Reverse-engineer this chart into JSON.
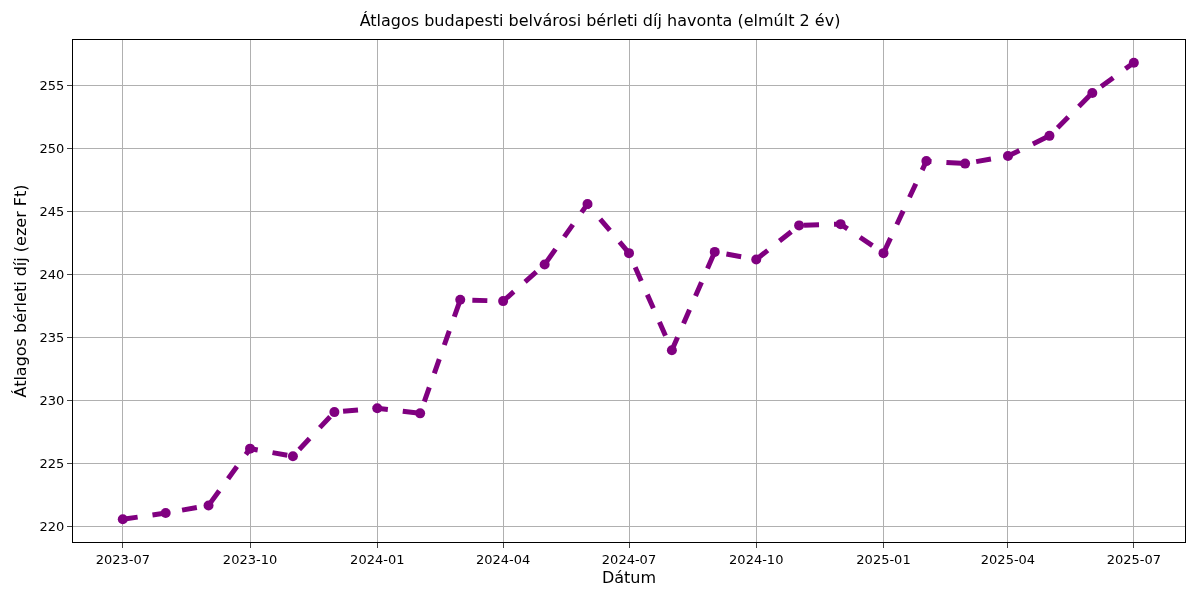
{
  "chart_data": {
    "type": "line",
    "title": "Átlagos budapesti belvárosi bérleti díj havonta (elmúlt 2 év)",
    "xlabel": "Dátum",
    "ylabel": "Átlagos bérleti díj (ezer Ft)",
    "x": [
      "2023-07",
      "2023-08",
      "2023-09",
      "2023-10",
      "2023-11",
      "2023-12",
      "2024-01",
      "2024-02",
      "2024-03",
      "2024-04",
      "2024-05",
      "2024-06",
      "2024-07",
      "2024-08",
      "2024-09",
      "2024-10",
      "2024-11",
      "2024-12",
      "2025-01",
      "2025-02",
      "2025-03",
      "2025-04",
      "2025-05",
      "2025-06",
      "2025-07"
    ],
    "series": [
      {
        "color": "#800080",
        "values": [
          220.6,
          221.1,
          221.7,
          226.2,
          225.6,
          229.1,
          229.4,
          229.0,
          238.0,
          237.9,
          240.8,
          245.6,
          241.7,
          234.0,
          241.8,
          241.2,
          243.9,
          244.0,
          241.7,
          249.0,
          248.8,
          249.4,
          251.0,
          254.4,
          256.8
        ]
      }
    ],
    "xlim": [
      "2023-05-26",
      "2025-08-07"
    ],
    "xticks": [
      "2023-07",
      "2023-10",
      "2024-01",
      "2024-04",
      "2024-07",
      "2024-10",
      "2025-01",
      "2025-04",
      "2025-07"
    ],
    "ylim": [
      218.8,
      258.6
    ],
    "yticks": [
      220,
      225,
      230,
      235,
      240,
      245,
      250,
      255
    ],
    "grid": true,
    "marker": "circle",
    "line_style": "dashed"
  }
}
